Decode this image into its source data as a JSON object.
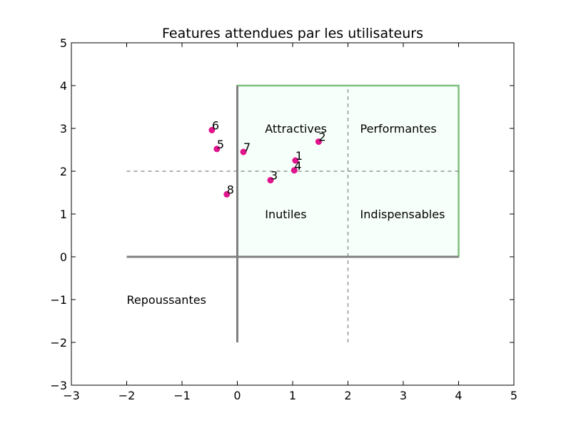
{
  "chart_data": {
    "type": "scatter",
    "title": "Features attendues par les utilisateurs",
    "xlabel": "",
    "ylabel": "",
    "xlim": [
      -3,
      5
    ],
    "ylim": [
      -3,
      5
    ],
    "x_ticks": [
      -3,
      -2,
      -1,
      0,
      1,
      2,
      3,
      4,
      5
    ],
    "y_ticks": [
      -3,
      -2,
      -1,
      0,
      1,
      2,
      3,
      4,
      5
    ],
    "grid": false,
    "points": [
      {
        "label": "1",
        "x": 1.05,
        "y": 2.25
      },
      {
        "label": "2",
        "x": 1.47,
        "y": 2.69
      },
      {
        "label": "3",
        "x": 0.6,
        "y": 1.79
      },
      {
        "label": "4",
        "x": 1.03,
        "y": 2.02
      },
      {
        "label": "5",
        "x": -0.37,
        "y": 2.52
      },
      {
        "label": "6",
        "x": -0.46,
        "y": 2.96
      },
      {
        "label": "7",
        "x": 0.11,
        "y": 2.45
      },
      {
        "label": "8",
        "x": -0.19,
        "y": 1.46
      }
    ],
    "regions": [
      {
        "label": "Attractives",
        "x": 0.5,
        "y": 3
      },
      {
        "label": "Performantes",
        "x": 2.22,
        "y": 3
      },
      {
        "label": "Inutiles",
        "x": 0.5,
        "y": 1
      },
      {
        "label": "Indispensables",
        "x": 2.22,
        "y": 1
      },
      {
        "label": "Repoussantes",
        "x": -2,
        "y": -1
      }
    ],
    "box": {
      "x0": 0,
      "y0": 0,
      "x1": 4,
      "y1": 4
    },
    "axis_lines": {
      "h": {
        "x0": -2,
        "x1": 4,
        "y": 0
      },
      "v": {
        "x": 0,
        "y0": -2,
        "y1": 4
      }
    },
    "dashed_lines": {
      "h": {
        "x0": -2,
        "x1": 4,
        "y": 2
      },
      "v": {
        "x": 2,
        "y0": -2,
        "y1": 4
      }
    },
    "colors": {
      "point": "#e0148c",
      "box_stroke": "#7fbf7f",
      "box_fill": "#f7fffa",
      "axis_line": "#808080",
      "dashed_line": "#808080"
    }
  }
}
